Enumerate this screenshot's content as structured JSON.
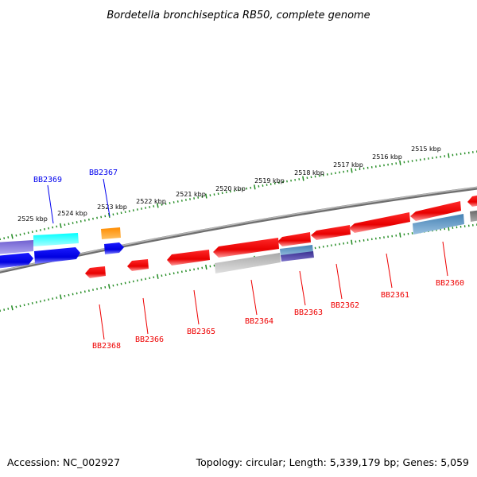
{
  "title": "Bordetella bronchiseptica RB50, complete genome",
  "footer": {
    "accession": "Accession: NC_002927",
    "summary": "Topology: circular; Length: 5,339,179 bp; Genes: 5,059"
  },
  "colors": {
    "forward": "#0000ee",
    "reverse": "#ee0000",
    "ruler": "#228b22",
    "backbone": "#808080"
  },
  "ruler_labels": [
    "2525 kbp",
    "2524 kbp",
    "2523 kbp",
    "2522 kbp",
    "2521 kbp",
    "2520 kbp",
    "2519 kbp",
    "2518 kbp",
    "2517 kbp",
    "2516 kbp",
    "2515 kbp"
  ],
  "gene_labels_forward": [
    "BB2369",
    "BB2367"
  ],
  "gene_labels_reverse": [
    "BB2368",
    "BB2366",
    "BB2365",
    "BB2364",
    "BB2363",
    "BB2362",
    "BB2361",
    "BB2360"
  ]
}
